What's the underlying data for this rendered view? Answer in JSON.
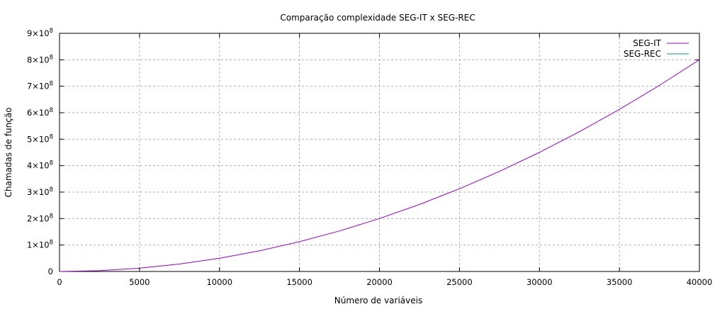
{
  "chart_data": {
    "type": "line",
    "title": "Comparação complexidade SEG-IT x SEG-REC",
    "xlabel": "Número de variáveis",
    "ylabel": "Chamadas de função",
    "xlim": [
      0,
      40000
    ],
    "ylim": [
      0,
      900000000
    ],
    "x_ticks": [
      0,
      5000,
      10000,
      15000,
      20000,
      25000,
      30000,
      35000,
      40000
    ],
    "x_tick_labels": [
      "0",
      "5000",
      "10000",
      "15000",
      "20000",
      "25000",
      "30000",
      "35000",
      "40000"
    ],
    "y_ticks": [
      0,
      100000000,
      200000000,
      300000000,
      400000000,
      500000000,
      600000000,
      700000000,
      800000000,
      900000000
    ],
    "y_tick_labels": [
      {
        "mantissa": "0",
        "exp": ""
      },
      {
        "mantissa": "1×10",
        "exp": "8"
      },
      {
        "mantissa": "2×10",
        "exp": "8"
      },
      {
        "mantissa": "3×10",
        "exp": "8"
      },
      {
        "mantissa": "4×10",
        "exp": "8"
      },
      {
        "mantissa": "5×10",
        "exp": "8"
      },
      {
        "mantissa": "6×10",
        "exp": "8"
      },
      {
        "mantissa": "7×10",
        "exp": "8"
      },
      {
        "mantissa": "8×10",
        "exp": "8"
      },
      {
        "mantissa": "9×10",
        "exp": "8"
      }
    ],
    "grid": true,
    "legend_position": "top-right",
    "series": [
      {
        "name": "SEG-IT",
        "color": "#9400d3",
        "x": [
          0,
          2500,
          5000,
          7500,
          10000,
          12500,
          15000,
          17500,
          20000,
          22500,
          25000,
          27500,
          30000,
          32500,
          35000,
          37500,
          40000
        ],
        "y": [
          0,
          3125000,
          12500000,
          28125000,
          50000000,
          78125000,
          112500000,
          153125000,
          200000000,
          253125000,
          312500000,
          378125000,
          450000000,
          528125000,
          612500000,
          703125000,
          800000000
        ]
      },
      {
        "name": "SEG-REC",
        "color": "#009e73",
        "x": [],
        "y": []
      }
    ]
  }
}
